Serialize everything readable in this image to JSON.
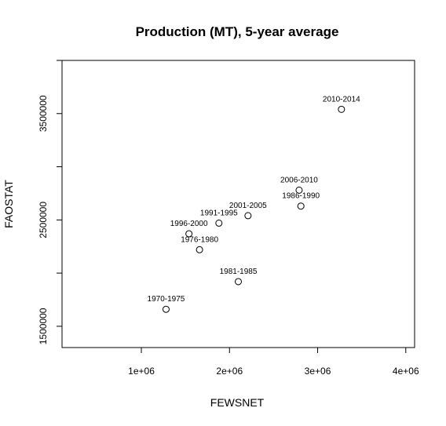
{
  "chart_data": {
    "type": "scatter",
    "title": "Production (MT), 5-year average",
    "xlabel": "FEWSNET",
    "ylabel": "FAOSTAT",
    "xlim": [
      100000,
      4100000
    ],
    "ylim": [
      1300000,
      4000000
    ],
    "x_ticks": [
      {
        "value": 1000000,
        "label": "1e+06"
      },
      {
        "value": 2000000,
        "label": "2e+06"
      },
      {
        "value": 3000000,
        "label": "3e+06"
      },
      {
        "value": 4000000,
        "label": "4e+06"
      }
    ],
    "y_ticks": [
      {
        "value": 1500000,
        "label": "1500000"
      },
      {
        "value": 2000000,
        "label": ""
      },
      {
        "value": 2500000,
        "label": "2500000"
      },
      {
        "value": 3000000,
        "label": ""
      },
      {
        "value": 3500000,
        "label": "3500000"
      },
      {
        "value": 4000000,
        "label": ""
      }
    ],
    "grid": false,
    "points": [
      {
        "label": "1970-1975",
        "x": 1280000,
        "y": 1660000
      },
      {
        "label": "1976-1980",
        "x": 1660000,
        "y": 2220000
      },
      {
        "label": "1981-1985",
        "x": 2100000,
        "y": 1920000
      },
      {
        "label": "1986-1990",
        "x": 2810000,
        "y": 2630000
      },
      {
        "label": "1991-1995",
        "x": 1880000,
        "y": 2470000
      },
      {
        "label": "1996-2000",
        "x": 1540000,
        "y": 2370000
      },
      {
        "label": "2001-2005",
        "x": 2210000,
        "y": 2540000
      },
      {
        "label": "2006-2010",
        "x": 2790000,
        "y": 2780000
      },
      {
        "label": "2010-2014",
        "x": 3270000,
        "y": 3540000
      }
    ]
  }
}
